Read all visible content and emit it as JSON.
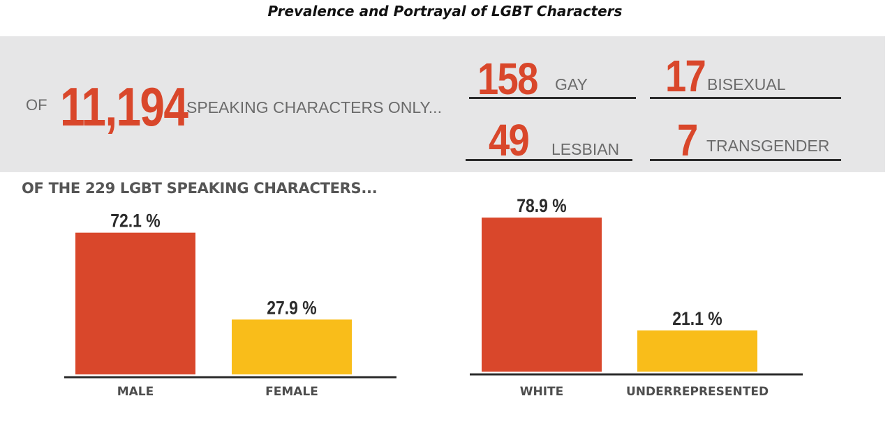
{
  "title": "Prevalence and Portrayal of LGBT Characters",
  "banner": {
    "of_label": "OF",
    "total": "11,194",
    "speaking_label": "SPEAKING CHARACTERS ONLY...",
    "stats": [
      {
        "value": "158",
        "label": "GAY"
      },
      {
        "value": "17",
        "label": "BISEXUAL"
      },
      {
        "value": "49",
        "label": "LESBIAN"
      },
      {
        "value": "7",
        "label": "TRANSGENDER"
      }
    ]
  },
  "subheading": "OF THE 229 LGBT SPEAKING CHARACTERS...",
  "colors": {
    "accent_red": "#d9472b",
    "accent_yellow": "#f9bd1a",
    "axis": "#2b2b2b"
  },
  "chart_data": [
    {
      "type": "bar",
      "categories": [
        "MALE",
        "FEMALE"
      ],
      "values": [
        72.1,
        27.9
      ],
      "value_labels": [
        "72.1 %",
        "27.9 %"
      ],
      "colors": [
        "#d9472b",
        "#f9bd1a"
      ],
      "ylim": [
        0,
        100
      ],
      "grid": false
    },
    {
      "type": "bar",
      "categories": [
        "WHITE",
        "UNDERREPRESENTED"
      ],
      "values": [
        78.9,
        21.1
      ],
      "value_labels": [
        "78.9 %",
        "21.1 %"
      ],
      "colors": [
        "#d9472b",
        "#f9bd1a"
      ],
      "ylim": [
        0,
        100
      ],
      "grid": false
    }
  ]
}
